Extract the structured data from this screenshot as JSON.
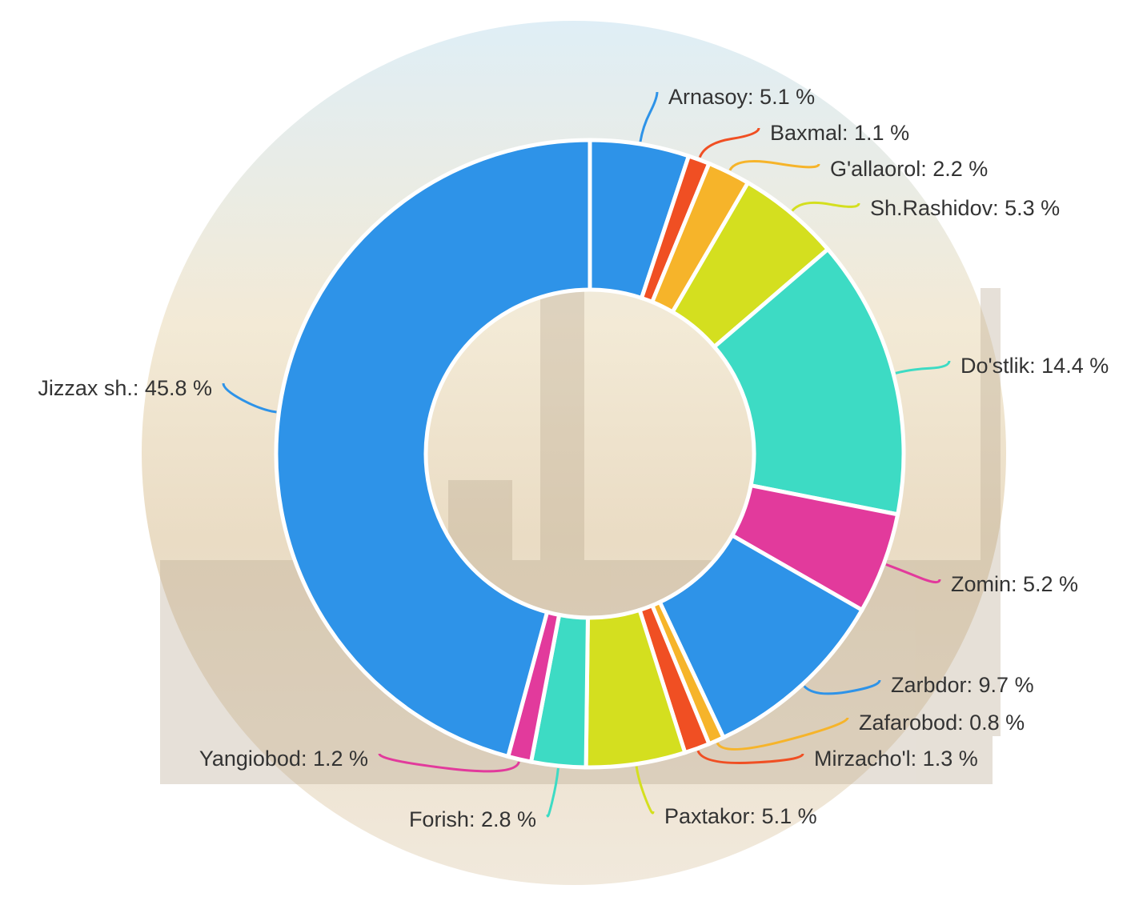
{
  "chart_data": {
    "type": "donut",
    "value_labels": [
      "Arnasoy: 5.1 %",
      "Baxmal: 1.1 %",
      "G'allaorol: 2.2 %",
      "Sh.Rashidov: 5.3 %",
      "Do'stlik: 14.4 %",
      "Zomin: 5.2 %",
      "Zarbdor: 9.7 %",
      "Zafarobod: 0.8 %",
      "Mirzacho'l: 1.3 %",
      "Paxtakor: 5.1 %",
      "Forish: 2.8 %",
      "Yangiobod: 1.2 %",
      "Jizzax sh.: 45.8 %"
    ],
    "values": [
      5.1,
      1.1,
      2.2,
      5.3,
      14.4,
      5.2,
      9.7,
      0.8,
      1.3,
      5.1,
      2.8,
      1.2,
      45.8
    ],
    "colors": [
      "#2e93e8",
      "#f04f23",
      "#f6b42a",
      "#d4df1f",
      "#3ddbc4",
      "#e23a9c",
      "#2e93e8",
      "#f6b42a",
      "#f04f23",
      "#d4df1f",
      "#3ddbc4",
      "#e23a9c",
      "#2e93e8"
    ]
  }
}
